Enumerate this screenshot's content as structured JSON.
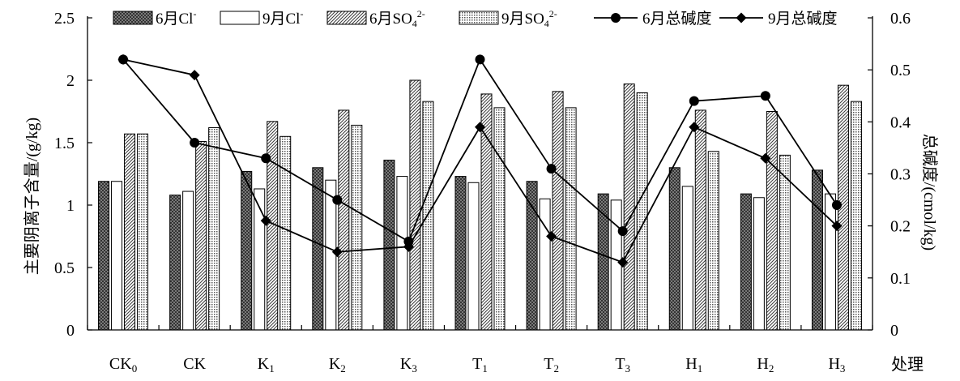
{
  "chart_data": {
    "type": "bar+line",
    "categories": [
      "CK0",
      "CK",
      "K1",
      "K2",
      "K3",
      "T1",
      "T2",
      "T3",
      "H1",
      "H2",
      "H3"
    ],
    "category_labels": [
      {
        "base": "CK",
        "sub": "0"
      },
      {
        "base": "CK",
        "sub": ""
      },
      {
        "base": "K",
        "sub": "1"
      },
      {
        "base": "K",
        "sub": "2"
      },
      {
        "base": "K",
        "sub": "3"
      },
      {
        "base": "T",
        "sub": "1"
      },
      {
        "base": "T",
        "sub": "2"
      },
      {
        "base": "T",
        "sub": "3"
      },
      {
        "base": "H",
        "sub": "1"
      },
      {
        "base": "H",
        "sub": "2"
      },
      {
        "base": "H",
        "sub": "3"
      }
    ],
    "bar_series": [
      {
        "name": "6月Cl-",
        "label_main": "6月Cl",
        "label_sup": "-",
        "label_sub": "",
        "pattern": "dark-check",
        "values": [
          1.19,
          1.08,
          1.27,
          1.3,
          1.36,
          1.23,
          1.19,
          1.09,
          1.3,
          1.09,
          1.28
        ]
      },
      {
        "name": "9月Cl-",
        "label_main": "9月Cl",
        "label_sup": "-",
        "label_sub": "",
        "pattern": "white",
        "values": [
          1.19,
          1.11,
          1.13,
          1.2,
          1.23,
          1.18,
          1.05,
          1.04,
          1.15,
          1.06,
          1.09
        ]
      },
      {
        "name": "6月SO42-",
        "label_main": "6月SO",
        "label_sup": "2-",
        "label_sub": "4",
        "pattern": "diagonal",
        "values": [
          1.57,
          1.51,
          1.67,
          1.76,
          2.0,
          1.89,
          1.91,
          1.97,
          1.76,
          1.75,
          1.96
        ]
      },
      {
        "name": "9月SO42-",
        "label_main": "9月SO",
        "label_sup": "2-",
        "label_sub": "4",
        "pattern": "dots",
        "values": [
          1.57,
          1.62,
          1.55,
          1.64,
          1.83,
          1.78,
          1.78,
          1.9,
          1.43,
          1.4,
          1.83
        ]
      }
    ],
    "line_series": [
      {
        "name": "6月总碱度",
        "marker": "circle",
        "values": [
          0.52,
          0.36,
          0.33,
          0.25,
          0.17,
          0.52,
          0.31,
          0.19,
          0.44,
          0.45,
          0.24
        ]
      },
      {
        "name": "9月总碱度",
        "marker": "diamond",
        "values": [
          0.52,
          0.49,
          0.21,
          0.15,
          0.16,
          0.39,
          0.18,
          0.13,
          0.39,
          0.33,
          0.2
        ]
      }
    ],
    "y_left": {
      "label": "主要阴离子含量/(g/kg)",
      "min": 0,
      "max": 2.5,
      "ticks": [
        "0",
        "0.5",
        "1",
        "1.5",
        "2",
        "2.5"
      ]
    },
    "y_right": {
      "label": "总碱度/(cmol/kg)",
      "min": 0,
      "max": 0.6,
      "ticks": [
        "0",
        "0.1",
        "0.2",
        "0.3",
        "0.4",
        "0.5",
        "0.6"
      ]
    },
    "xlabel": "处理",
    "legend_position": "top",
    "grid": false
  }
}
